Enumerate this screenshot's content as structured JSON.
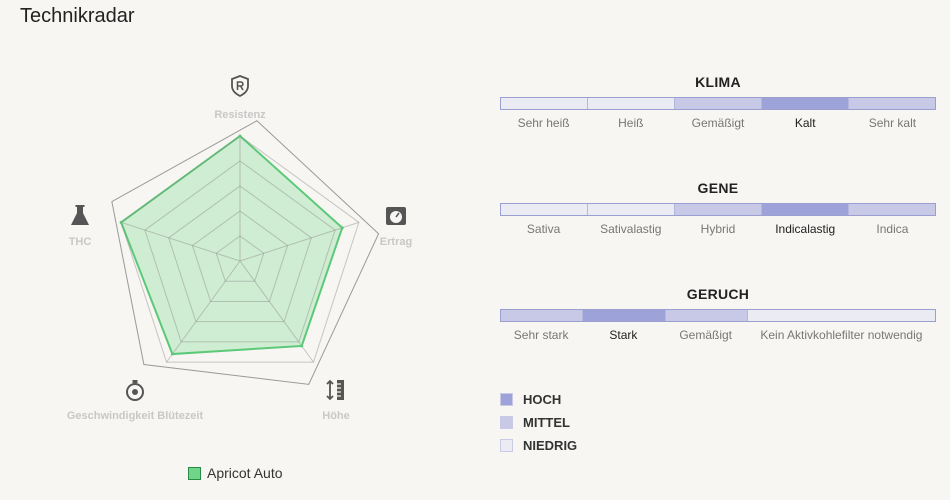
{
  "page": {
    "title": "Technikradar"
  },
  "colors": {
    "high": "#9da2d9",
    "medium": "#c7c9e7",
    "low": "#ebebf3",
    "radar_fill": "#6fd689",
    "radar_stroke": "#5cc978",
    "axis_icon": "#555555",
    "axis_label": "#c8c8c8"
  },
  "chart_data": {
    "type": "radar",
    "axes": [
      {
        "label": "Resistenz",
        "icon": "shield-r-icon"
      },
      {
        "label": "Ertrag",
        "icon": "scale-weight-icon"
      },
      {
        "label": "Höhe",
        "icon": "height-ruler-icon"
      },
      {
        "label": "Geschwindigkeit Blütezeit",
        "icon": "stopwatch-icon"
      },
      {
        "label": "THC",
        "icon": "flask-icon"
      }
    ],
    "range": [
      0,
      5
    ],
    "grid_levels": 5,
    "max_outline": [
      5,
      5,
      5,
      5,
      5
    ],
    "series": [
      {
        "name": "Apricot Auto",
        "values": [
          5,
          4.3,
          4.2,
          4.6,
          5
        ],
        "color": "#6fd689"
      }
    ],
    "legend": "bottom"
  },
  "scales": [
    {
      "title": "KLIMA",
      "segments": [
        {
          "label": "Sehr heiß",
          "level": "low"
        },
        {
          "label": "Heiß",
          "level": "low"
        },
        {
          "label": "Gemäßigt",
          "level": "medium"
        },
        {
          "label": "Kalt",
          "level": "high"
        },
        {
          "label": "Sehr kalt",
          "level": "medium"
        }
      ],
      "active": "Kalt"
    },
    {
      "title": "GENE",
      "segments": [
        {
          "label": "Sativa",
          "level": "low"
        },
        {
          "label": "Sativalastig",
          "level": "low"
        },
        {
          "label": "Hybrid",
          "level": "medium"
        },
        {
          "label": "Indicalastig",
          "level": "high"
        },
        {
          "label": "Indica",
          "level": "medium"
        }
      ],
      "active": "Indicalastig"
    },
    {
      "title": "GERUCH",
      "segments": [
        {
          "label": "Sehr stark",
          "level": "medium"
        },
        {
          "label": "Stark",
          "level": "high"
        },
        {
          "label": "Gemäßigt",
          "level": "medium"
        },
        {
          "label": "Kein Aktivkohlefilter notwendig",
          "level": "low",
          "weight": 2.3
        }
      ],
      "active": "Stark"
    }
  ],
  "key": [
    {
      "label": "HOCH",
      "level": "high"
    },
    {
      "label": "MITTEL",
      "level": "medium"
    },
    {
      "label": "NIEDRIG",
      "level": "low"
    }
  ]
}
